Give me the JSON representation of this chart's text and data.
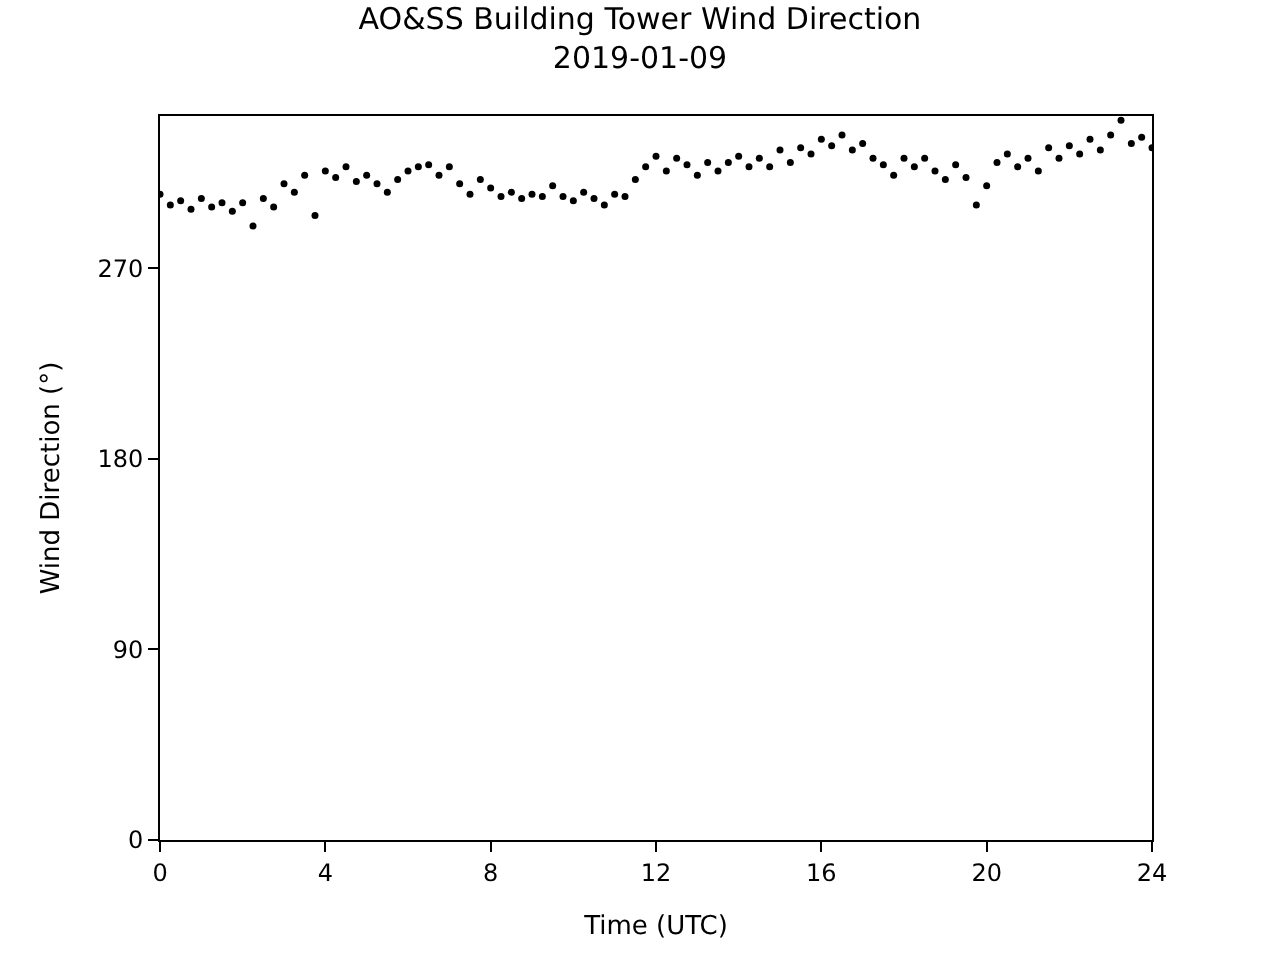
{
  "chart_data": {
    "type": "scatter",
    "title": "AO&SS Building Tower Wind Direction",
    "subtitle": "2019-01-09",
    "xlabel": "Time (UTC)",
    "ylabel": "Wind Direction (°)",
    "x": [
      0,
      0.25,
      0.5,
      0.75,
      1,
      1.25,
      1.5,
      1.75,
      2,
      2.25,
      2.5,
      2.75,
      3,
      3.25,
      3.5,
      3.75,
      4,
      4.25,
      4.5,
      4.75,
      5,
      5.25,
      5.5,
      5.75,
      6,
      6.25,
      6.5,
      6.75,
      7,
      7.25,
      7.5,
      7.75,
      8,
      8.25,
      8.5,
      8.75,
      9,
      9.25,
      9.5,
      9.75,
      10,
      10.25,
      10.5,
      10.75,
      11,
      11.25,
      11.5,
      11.75,
      12,
      12.25,
      12.5,
      12.75,
      13,
      13.25,
      13.5,
      13.75,
      14,
      14.25,
      14.5,
      14.75,
      15,
      15.25,
      15.5,
      15.75,
      16,
      16.25,
      16.5,
      16.75,
      17,
      17.25,
      17.5,
      17.75,
      18,
      18.25,
      18.5,
      18.75,
      19,
      19.25,
      19.5,
      19.75,
      20,
      20.25,
      20.5,
      20.75,
      21,
      21.25,
      21.5,
      21.75,
      22,
      22.25,
      22.5,
      22.75,
      23,
      23.25,
      23.5,
      23.75,
      24
    ],
    "values": [
      305,
      300,
      302,
      298,
      303,
      299,
      301,
      297,
      301,
      290,
      303,
      299,
      310,
      306,
      314,
      295,
      316,
      313,
      318,
      311,
      314,
      310,
      306,
      312,
      316,
      318,
      319,
      314,
      318,
      310,
      305,
      312,
      308,
      304,
      306,
      303,
      305,
      304,
      309,
      304,
      302,
      306,
      303,
      300,
      305,
      304,
      312,
      318,
      323,
      316,
      322,
      319,
      314,
      320,
      316,
      320,
      323,
      318,
      322,
      318,
      326,
      320,
      327,
      324,
      331,
      328,
      333,
      326,
      329,
      322,
      319,
      314,
      322,
      318,
      322,
      316,
      312,
      319,
      313,
      300,
      309,
      320,
      324,
      318,
      322,
      316,
      327,
      322,
      328,
      324,
      331,
      326,
      333,
      340,
      329,
      332,
      327
    ],
    "color": "#000000",
    "marker": "circle",
    "xlim": [
      0,
      24
    ],
    "xticks": [
      0,
      4,
      8,
      12,
      16,
      20,
      24
    ],
    "ylim": [
      0,
      342
    ],
    "yticks": [
      0,
      90,
      180,
      270
    ],
    "legend": false
  }
}
